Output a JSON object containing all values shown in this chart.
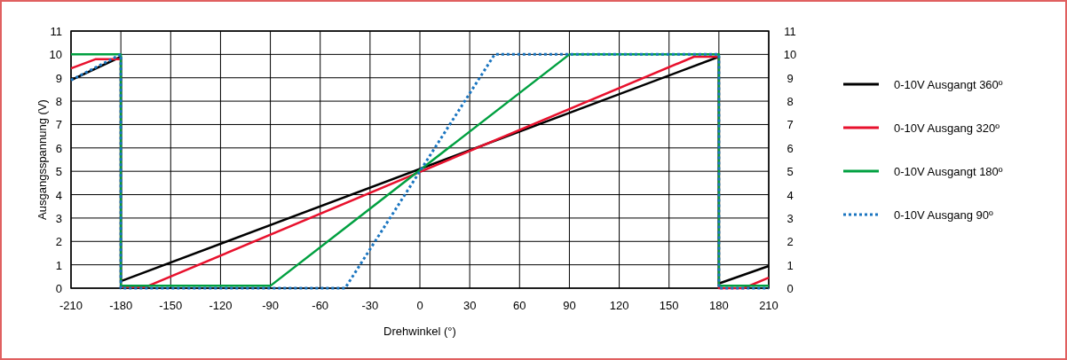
{
  "chart_data": {
    "type": "line",
    "xlabel": "Drehwinkel (°)",
    "ylabel": "Ausgangsspannung (V)",
    "xlim": [
      -210,
      210
    ],
    "xticks": [
      -210,
      -180,
      -150,
      -120,
      -90,
      -60,
      -30,
      0,
      30,
      60,
      90,
      120,
      150,
      180,
      210
    ],
    "ylim": [
      0,
      11
    ],
    "yticks": [
      0,
      1,
      2,
      3,
      4,
      5,
      6,
      7,
      8,
      9,
      10,
      11
    ],
    "y2lim": [
      0,
      11
    ],
    "y2ticks": [
      0,
      1,
      2,
      3,
      4,
      5,
      6,
      7,
      8,
      9,
      10,
      11
    ],
    "grid": true,
    "legend": "right",
    "marker": "none",
    "series": [
      {
        "name": "0-10V Ausgangt 360º",
        "color": "#000000",
        "line_style": "solid",
        "x": [
          -210,
          -180,
          -180,
          180,
          180,
          210
        ],
        "values": [
          8.9,
          9.9,
          0.3,
          9.9,
          0.2,
          0.95
        ]
      },
      {
        "name": "0-10V Ausgang 320º",
        "color": "#e8112d",
        "line_style": "solid",
        "x": [
          -210,
          -195,
          -180,
          -180,
          -165,
          165,
          180,
          180,
          195,
          210
        ],
        "values": [
          9.4,
          9.8,
          9.8,
          0.05,
          0.05,
          9.9,
          9.9,
          0,
          0,
          0.45
        ]
      },
      {
        "name": "0-10V Ausgangt 180º",
        "color": "#00a040",
        "line_style": "solid",
        "x": [
          -210,
          -180,
          -180,
          -90,
          90,
          180,
          180,
          210
        ],
        "values": [
          10,
          10,
          0.1,
          0.1,
          10,
          10,
          0.1,
          0.1
        ]
      },
      {
        "name": "0-10V Ausgang 90º",
        "color": "#1a75c0",
        "line_style": "dotted",
        "x": [
          -210,
          -180,
          -180,
          -45,
          45,
          180,
          180,
          210
        ],
        "values": [
          8.9,
          10,
          0,
          0,
          10,
          10,
          0,
          0
        ]
      }
    ]
  }
}
